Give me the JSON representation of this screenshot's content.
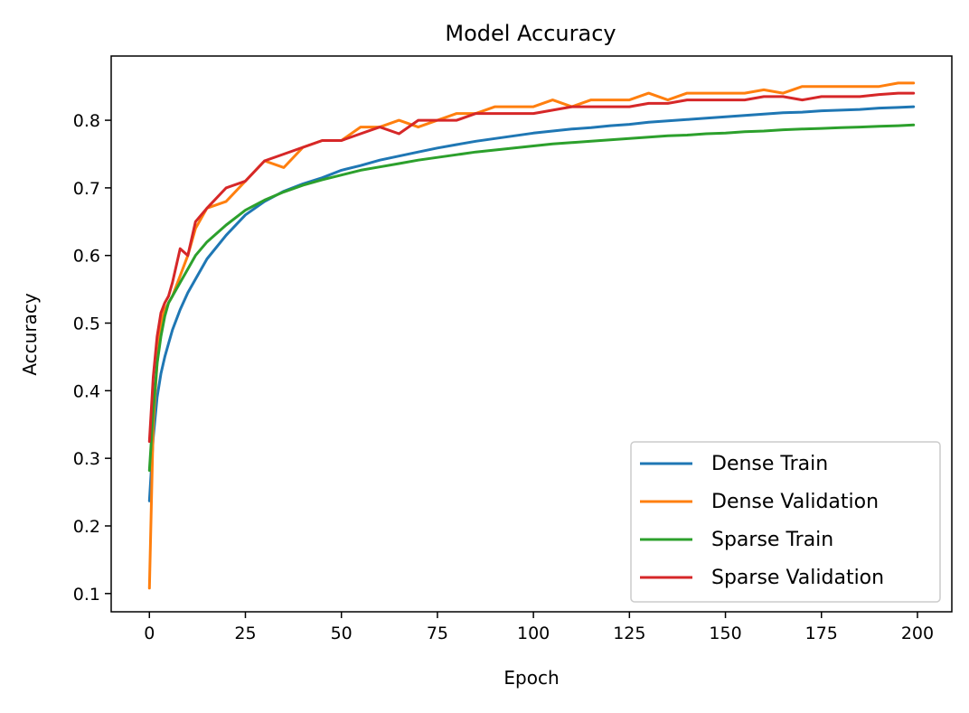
{
  "chart_data": {
    "type": "line",
    "title": "Model Accuracy",
    "xlabel": "Epoch",
    "ylabel": "Accuracy",
    "xlim": [
      -9.95,
      208.95
    ],
    "ylim": [
      0.073,
      0.895
    ],
    "x_ticks": [
      0,
      25,
      50,
      75,
      100,
      125,
      150,
      175,
      200
    ],
    "y_ticks": [
      0.1,
      0.2,
      0.3,
      0.4,
      0.5,
      0.6,
      0.7,
      0.8
    ],
    "grid": false,
    "legend_position": "lower-right",
    "x": [
      0,
      1,
      2,
      3,
      4,
      5,
      6,
      8,
      10,
      12,
      15,
      20,
      25,
      30,
      35,
      40,
      45,
      50,
      55,
      60,
      65,
      70,
      75,
      80,
      85,
      90,
      95,
      100,
      105,
      110,
      115,
      120,
      125,
      130,
      135,
      140,
      145,
      150,
      155,
      160,
      165,
      170,
      175,
      180,
      185,
      190,
      195,
      199
    ],
    "series": [
      {
        "name": "Dense Train",
        "color": "#1f77b4",
        "values": [
          0.237,
          0.33,
          0.39,
          0.425,
          0.45,
          0.47,
          0.49,
          0.52,
          0.545,
          0.565,
          0.595,
          0.63,
          0.66,
          0.68,
          0.695,
          0.706,
          0.715,
          0.726,
          0.733,
          0.741,
          0.747,
          0.753,
          0.759,
          0.764,
          0.769,
          0.773,
          0.777,
          0.781,
          0.784,
          0.787,
          0.789,
          0.792,
          0.794,
          0.797,
          0.799,
          0.801,
          0.803,
          0.805,
          0.807,
          0.809,
          0.811,
          0.812,
          0.814,
          0.815,
          0.816,
          0.818,
          0.819,
          0.82
        ]
      },
      {
        "name": "Dense Validation",
        "color": "#ff7f0e",
        "values": [
          0.108,
          0.35,
          0.44,
          0.5,
          0.52,
          0.53,
          0.54,
          0.57,
          0.6,
          0.64,
          0.67,
          0.68,
          0.71,
          0.74,
          0.73,
          0.76,
          0.77,
          0.77,
          0.79,
          0.79,
          0.8,
          0.79,
          0.8,
          0.81,
          0.81,
          0.82,
          0.82,
          0.82,
          0.83,
          0.82,
          0.83,
          0.83,
          0.83,
          0.84,
          0.83,
          0.84,
          0.84,
          0.84,
          0.84,
          0.845,
          0.84,
          0.85,
          0.85,
          0.85,
          0.85,
          0.85,
          0.855,
          0.855
        ]
      },
      {
        "name": "Sparse Train",
        "color": "#2ca02c",
        "values": [
          0.282,
          0.37,
          0.44,
          0.48,
          0.51,
          0.53,
          0.54,
          0.56,
          0.58,
          0.6,
          0.62,
          0.645,
          0.667,
          0.682,
          0.694,
          0.704,
          0.712,
          0.719,
          0.726,
          0.731,
          0.736,
          0.741,
          0.745,
          0.749,
          0.753,
          0.756,
          0.759,
          0.762,
          0.765,
          0.767,
          0.769,
          0.771,
          0.773,
          0.775,
          0.777,
          0.778,
          0.78,
          0.781,
          0.783,
          0.784,
          0.786,
          0.787,
          0.788,
          0.789,
          0.79,
          0.791,
          0.792,
          0.793
        ]
      },
      {
        "name": "Sparse Validation",
        "color": "#d62728",
        "values": [
          0.325,
          0.42,
          0.48,
          0.515,
          0.53,
          0.54,
          0.56,
          0.61,
          0.6,
          0.65,
          0.67,
          0.7,
          0.71,
          0.74,
          0.75,
          0.76,
          0.77,
          0.77,
          0.78,
          0.79,
          0.78,
          0.8,
          0.8,
          0.8,
          0.81,
          0.81,
          0.81,
          0.81,
          0.815,
          0.82,
          0.82,
          0.82,
          0.82,
          0.825,
          0.825,
          0.83,
          0.83,
          0.83,
          0.83,
          0.835,
          0.835,
          0.83,
          0.835,
          0.835,
          0.835,
          0.838,
          0.84,
          0.84
        ]
      }
    ]
  }
}
